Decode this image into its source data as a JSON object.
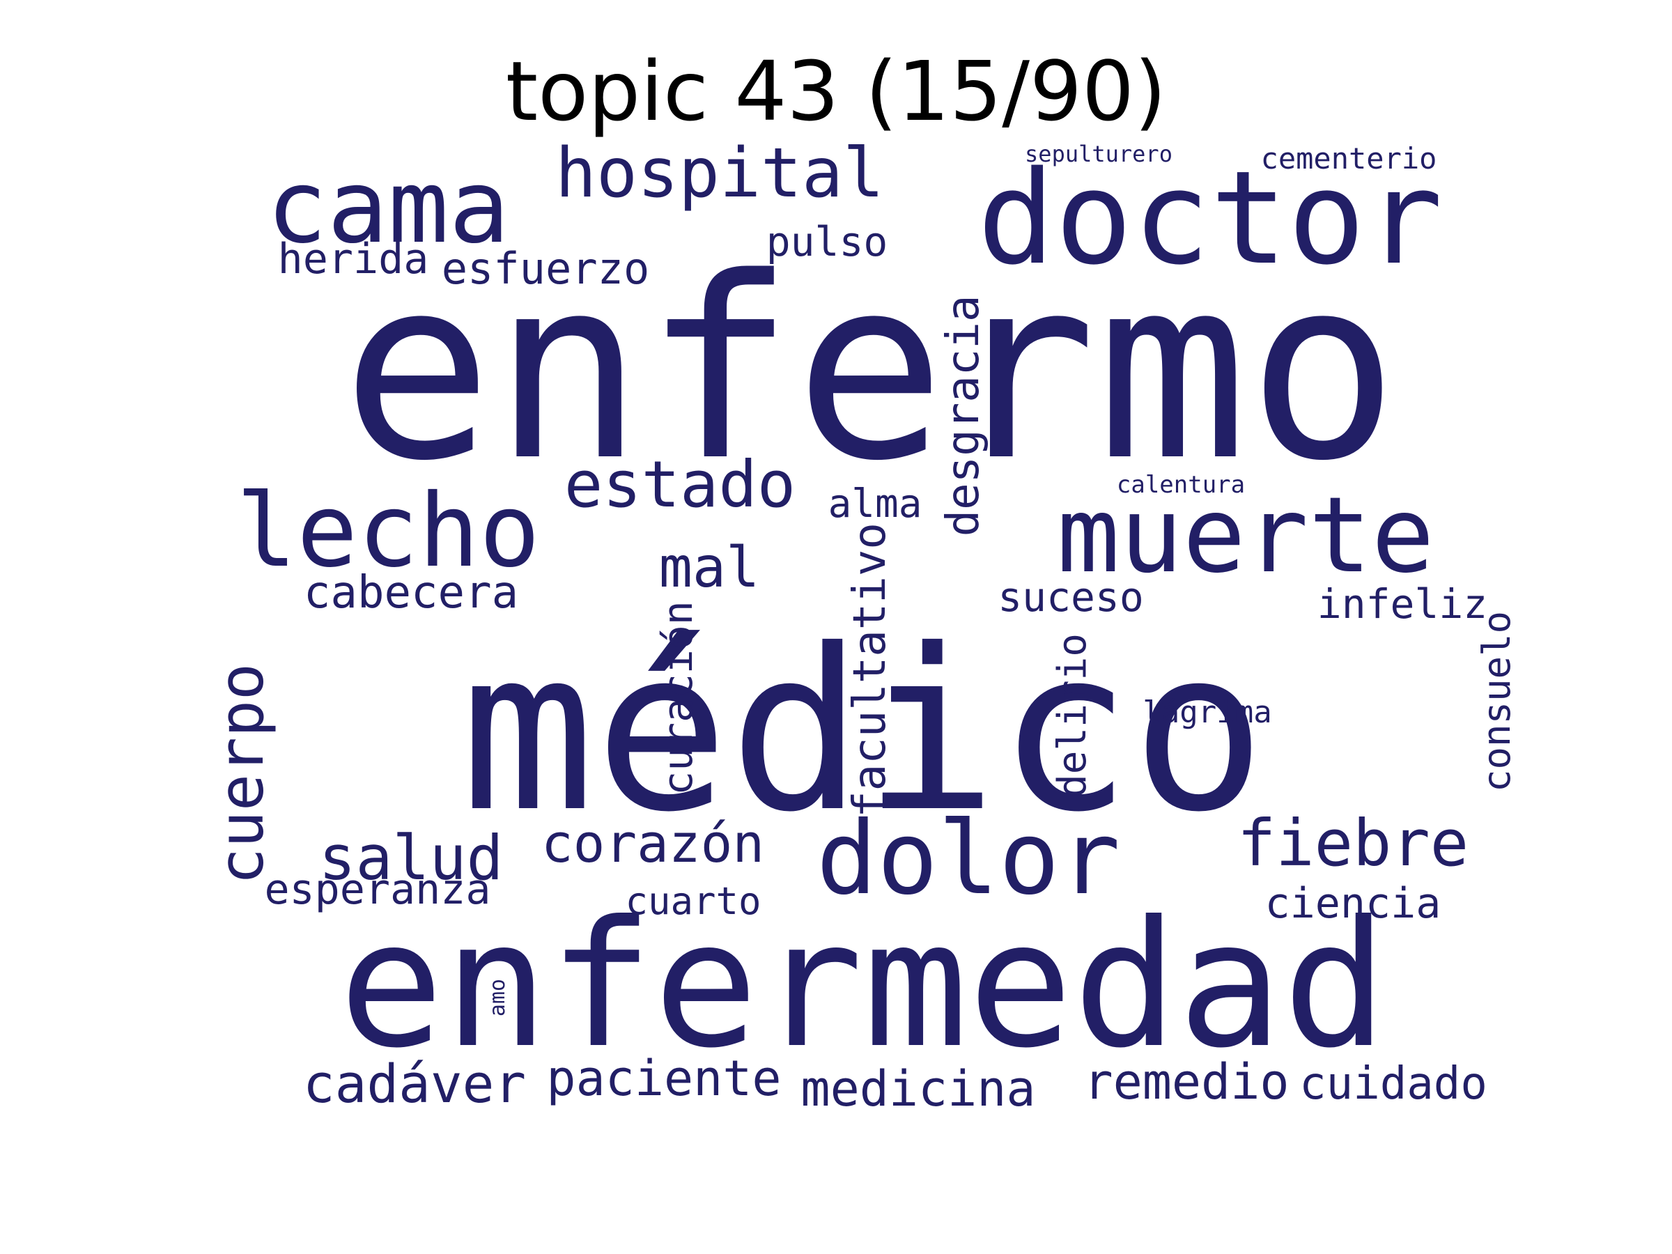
{
  "title": "topic 43 (15/90)",
  "colors": {
    "word": "#221f66",
    "title": "#000000",
    "background": "#ffffff"
  },
  "words": [
    {
      "text": "enfermo",
      "weight": 1.0,
      "vertical": false
    },
    {
      "text": "médico",
      "weight": 0.95,
      "vertical": false
    },
    {
      "text": "enfermedad",
      "weight": 0.8,
      "vertical": false
    },
    {
      "text": "doctor",
      "weight": 0.55,
      "vertical": false
    },
    {
      "text": "muerte",
      "weight": 0.45,
      "vertical": false
    },
    {
      "text": "cama",
      "weight": 0.43,
      "vertical": false
    },
    {
      "text": "dolor",
      "weight": 0.43,
      "vertical": false
    },
    {
      "text": "lecho",
      "weight": 0.42,
      "vertical": false
    },
    {
      "text": "hospital",
      "weight": 0.3,
      "vertical": false
    },
    {
      "text": "estado",
      "weight": 0.27,
      "vertical": false
    },
    {
      "text": "fiebre",
      "weight": 0.27,
      "vertical": false
    },
    {
      "text": "salud",
      "weight": 0.26,
      "vertical": false
    },
    {
      "text": "cuerpo",
      "weight": 0.26,
      "vertical": true
    },
    {
      "text": "corazón",
      "weight": 0.24,
      "vertical": false
    },
    {
      "text": "mal",
      "weight": 0.23,
      "vertical": false
    },
    {
      "text": "cadáver",
      "weight": 0.23,
      "vertical": false
    },
    {
      "text": "remedio",
      "weight": 0.2,
      "vertical": false
    },
    {
      "text": "paciente",
      "weight": 0.2,
      "vertical": false
    },
    {
      "text": "medicina",
      "weight": 0.2,
      "vertical": false
    },
    {
      "text": "cuidado",
      "weight": 0.19,
      "vertical": false
    },
    {
      "text": "desgracia",
      "weight": 0.19,
      "vertical": true
    },
    {
      "text": "facultativo",
      "weight": 0.19,
      "vertical": true
    },
    {
      "text": "cabecera",
      "weight": 0.18,
      "vertical": false
    },
    {
      "text": "esfuerzo",
      "weight": 0.18,
      "vertical": false
    },
    {
      "text": "herida",
      "weight": 0.17,
      "vertical": false
    },
    {
      "text": "ciencia",
      "weight": 0.17,
      "vertical": false
    },
    {
      "text": "esperanza",
      "weight": 0.17,
      "vertical": false
    },
    {
      "text": "curación",
      "weight": 0.16,
      "vertical": true
    },
    {
      "text": "consuelo",
      "weight": 0.16,
      "vertical": true
    },
    {
      "text": "delirio",
      "weight": 0.16,
      "vertical": true
    },
    {
      "text": "suceso",
      "weight": 0.16,
      "vertical": false
    },
    {
      "text": "infeliz",
      "weight": 0.16,
      "vertical": false
    },
    {
      "text": "pulso",
      "weight": 0.15,
      "vertical": false
    },
    {
      "text": "alma",
      "weight": 0.15,
      "vertical": false
    },
    {
      "text": "cuarto",
      "weight": 0.15,
      "vertical": false
    },
    {
      "text": "cementerio",
      "weight": 0.12,
      "vertical": false
    },
    {
      "text": "lágrima",
      "weight": 0.12,
      "vertical": false
    },
    {
      "text": "sepulturero",
      "weight": 0.09,
      "vertical": false
    },
    {
      "text": "calentura",
      "weight": 0.09,
      "vertical": false
    },
    {
      "text": "amo",
      "weight": 0.08,
      "vertical": true
    }
  ]
}
